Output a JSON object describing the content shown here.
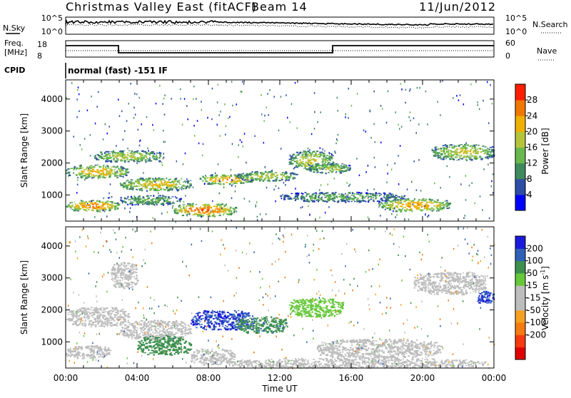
{
  "header": {
    "title": "Christmas Valley East (fitACF)",
    "beam": "Beam 14",
    "date": "11/Jun/2012"
  },
  "top_panels": {
    "nsky_label": "N.Sky",
    "nsearch_label": "N.Search",
    "nave_label": "Nave",
    "freq_label_1": "Freq.",
    "freq_label_2": "[MHz]",
    "cpid_label": "CPID",
    "cpid_text": "normal (fast) -151 IF",
    "noise_left_ticks": [
      "10^5",
      "10^0"
    ],
    "noise_right_ticks": [
      "10^5",
      "10^0"
    ],
    "freq_left_ticks": [
      "18",
      "8"
    ],
    "freq_right_ticks": [
      "60",
      "0"
    ]
  },
  "axes": {
    "ylabel": "Slant Range [km]",
    "xlabel": "Time UT",
    "y_ticks": [
      "1000",
      "2000",
      "3000",
      "4000"
    ],
    "x_ticks": [
      "00:00",
      "04:00",
      "08:00",
      "12:00",
      "16:00",
      "20:00",
      "00:00"
    ]
  },
  "colorbars": {
    "power": {
      "label": "Power [dB]",
      "tick_labels": [
        "4",
        "8",
        "12",
        "16",
        "20",
        "24",
        "28"
      ],
      "colors": [
        "#0000ff",
        "#2e4da6",
        "#3f8a5c",
        "#69b84e",
        "#b6c43b",
        "#f0b000",
        "#f07800",
        "#ff1e00"
      ]
    },
    "velocity": {
      "label": "Velocity [m s",
      "label_sup": "-1",
      "label_end": "]",
      "tick_labels": [
        "200",
        "100",
        "50",
        "15",
        "-15",
        "-50",
        "-100",
        "-200"
      ],
      "colors": [
        "#1a1adc",
        "#2f61b8",
        "#3d8f4e",
        "#66c83a",
        "#bdbdbd",
        "#bdbdbd",
        "#f5a020",
        "#f57a10",
        "#f53a10",
        "#e00000"
      ]
    }
  },
  "chart_data": [
    {
      "type": "heatmap",
      "name": "power",
      "x_unit": "hours UT",
      "y_unit": "km",
      "xlim": [
        0,
        24
      ],
      "ylim": [
        180,
        4600
      ],
      "blobs": [
        {
          "x0": 0.0,
          "x1": 3.5,
          "y0": 1550,
          "y1": 1950,
          "value": 22
        },
        {
          "x0": 0.0,
          "x1": 3.0,
          "y0": 500,
          "y1": 850,
          "value": 26
        },
        {
          "x0": 1.5,
          "x1": 5.5,
          "y0": 2050,
          "y1": 2400,
          "value": 18
        },
        {
          "x0": 3.0,
          "x1": 7.0,
          "y0": 1150,
          "y1": 1550,
          "value": 21
        },
        {
          "x0": 3.0,
          "x1": 6.5,
          "y0": 700,
          "y1": 1000,
          "value": 14
        },
        {
          "x0": 6.0,
          "x1": 9.5,
          "y0": 350,
          "y1": 750,
          "value": 27
        },
        {
          "x0": 7.5,
          "x1": 10.5,
          "y0": 1350,
          "y1": 1650,
          "value": 24
        },
        {
          "x0": 9.5,
          "x1": 13.0,
          "y0": 1450,
          "y1": 1750,
          "value": 18
        },
        {
          "x0": 12.5,
          "x1": 15.0,
          "y0": 1800,
          "y1": 2400,
          "value": 19
        },
        {
          "x0": 13.5,
          "x1": 16.0,
          "y0": 1700,
          "y1": 2000,
          "value": 17
        },
        {
          "x0": 12.0,
          "x1": 19.0,
          "y0": 800,
          "y1": 1100,
          "value": 13
        },
        {
          "x0": 17.5,
          "x1": 21.5,
          "y0": 500,
          "y1": 900,
          "value": 24
        },
        {
          "x0": 20.5,
          "x1": 24.0,
          "y0": 2100,
          "y1": 2600,
          "value": 19
        }
      ]
    },
    {
      "type": "heatmap",
      "name": "velocity",
      "x_unit": "hours UT",
      "y_unit": "km",
      "xlim": [
        0,
        24
      ],
      "ylim": [
        180,
        4600
      ],
      "blobs": [
        {
          "x0": 0.0,
          "x1": 3.5,
          "y0": 1500,
          "y1": 2100,
          "value": 0
        },
        {
          "x0": 3.0,
          "x1": 7.0,
          "y0": 1100,
          "y1": 1700,
          "value": 0
        },
        {
          "x0": 0.0,
          "x1": 2.5,
          "y0": 500,
          "y1": 900,
          "value": 0
        },
        {
          "x0": 2.5,
          "x1": 4.0,
          "y0": 2700,
          "y1": 3500,
          "value": -40
        },
        {
          "x0": 4.0,
          "x1": 7.0,
          "y0": 600,
          "y1": 1200,
          "value": 60
        },
        {
          "x0": 7.0,
          "x1": 9.5,
          "y0": 300,
          "y1": 800,
          "value": 0
        },
        {
          "x0": 7.0,
          "x1": 10.5,
          "y0": 1400,
          "y1": 2000,
          "value": 200
        },
        {
          "x0": 9.5,
          "x1": 12.5,
          "y0": 1300,
          "y1": 1800,
          "value": 80
        },
        {
          "x0": 9.0,
          "x1": 23.5,
          "y0": 200,
          "y1": 500,
          "value": -40
        },
        {
          "x0": 12.5,
          "x1": 15.5,
          "y0": 1800,
          "y1": 2400,
          "value": 40
        },
        {
          "x0": 14.0,
          "x1": 21.0,
          "y0": 500,
          "y1": 1100,
          "value": 0
        },
        {
          "x0": 19.5,
          "x1": 23.5,
          "y0": 2500,
          "y1": 3200,
          "value": 0
        },
        {
          "x0": 23.0,
          "x1": 24.0,
          "y0": 2200,
          "y1": 2600,
          "value": 200
        }
      ]
    }
  ]
}
